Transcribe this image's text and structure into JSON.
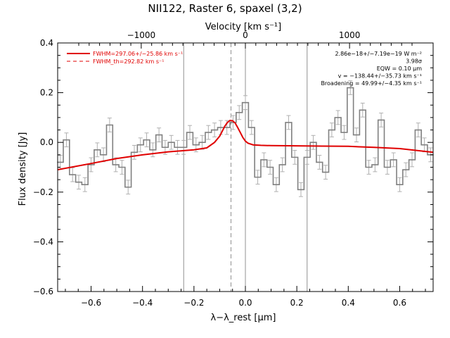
{
  "chart_data": {
    "type": "line",
    "title": "NII122, Raster 6, spaxel (3,2)",
    "xlabel": "λ−λ_rest [μm]",
    "ylabel": "Flux density [Jy]",
    "top_xlabel": "Velocity [km s⁻¹]",
    "xlim": [
      -0.73,
      0.73
    ],
    "ylim": [
      -0.6,
      0.4
    ],
    "x_ticks": [
      "−0.6",
      "−0.4",
      "−0.2",
      "0.0",
      "0.2",
      "0.4",
      "0.6"
    ],
    "x_tick_values": [
      -0.6,
      -0.4,
      -0.2,
      0.0,
      0.2,
      0.4,
      0.6
    ],
    "y_ticks": [
      "−0.6",
      "−0.4",
      "−0.2",
      "0.0",
      "0.2",
      "0.4"
    ],
    "y_tick_values": [
      -0.6,
      -0.4,
      -0.2,
      0.0,
      0.2,
      0.4
    ],
    "top_ticks": [
      "−1000",
      "0",
      "1000"
    ],
    "top_tick_values": [
      -0.405,
      0.0,
      0.405
    ],
    "grid": false,
    "vertical_lines": [
      {
        "x": -0.24,
        "style": "solid"
      },
      {
        "x": 0.0,
        "style": "solid"
      },
      {
        "x": 0.24,
        "style": "solid"
      },
      {
        "x": -0.056,
        "style": "dashed"
      }
    ],
    "legend": {
      "placement": "top-left",
      "entries": [
        {
          "label": "FWHM=297.06+/−25.86 km s⁻¹",
          "style": "solid",
          "color": "#e00000"
        },
        {
          "label": "FWHM_th=292.82 km s⁻¹",
          "style": "dashed",
          "color": "#e00000"
        }
      ]
    },
    "annotations": [
      "2.86e−18+/−7.19e−19 W m⁻²",
      "3.98σ",
      "EQW = 0.10 μm",
      "v = −138.44+/−35.73 km s⁻¹",
      "Broadening = 49.99+/−4.35 km s⁻¹"
    ],
    "series": [
      {
        "type": "step",
        "color": "#808080",
        "x": [
          -0.72,
          -0.696,
          -0.672,
          -0.648,
          -0.624,
          -0.6,
          -0.576,
          -0.552,
          -0.528,
          -0.504,
          -0.48,
          -0.456,
          -0.432,
          -0.408,
          -0.384,
          -0.36,
          -0.336,
          -0.312,
          -0.288,
          -0.264,
          -0.24,
          -0.216,
          -0.192,
          -0.168,
          -0.144,
          -0.12,
          -0.096,
          -0.072,
          -0.048,
          -0.024,
          0.0,
          0.024,
          0.048,
          0.072,
          0.096,
          0.12,
          0.144,
          0.168,
          0.192,
          0.216,
          0.24,
          0.264,
          0.288,
          0.312,
          0.336,
          0.36,
          0.384,
          0.408,
          0.432,
          0.456,
          0.48,
          0.504,
          0.528,
          0.552,
          0.576,
          0.6,
          0.624,
          0.648,
          0.672,
          0.696,
          0.72
        ],
        "y": [
          -0.08,
          0.01,
          -0.13,
          -0.16,
          -0.17,
          -0.09,
          -0.03,
          -0.05,
          0.07,
          -0.09,
          -0.1,
          -0.18,
          -0.04,
          -0.01,
          0.01,
          -0.03,
          0.03,
          -0.02,
          0.0,
          -0.02,
          -0.02,
          0.04,
          -0.01,
          0.0,
          0.04,
          0.05,
          0.06,
          0.06,
          0.08,
          0.12,
          0.16,
          0.06,
          -0.14,
          -0.07,
          -0.1,
          -0.17,
          -0.09,
          0.08,
          -0.06,
          -0.19,
          -0.06,
          0.0,
          -0.08,
          -0.12,
          0.05,
          0.1,
          0.04,
          0.22,
          0.03,
          0.13,
          -0.1,
          -0.09,
          0.09,
          -0.1,
          -0.07,
          -0.17,
          -0.11,
          -0.07,
          0.05,
          -0.01,
          -0.05
        ]
      },
      {
        "type": "line",
        "color": "#e00000",
        "name": "fit",
        "x": [
          -0.73,
          -0.6,
          -0.5,
          -0.4,
          -0.3,
          -0.2,
          -0.15,
          -0.12,
          -0.1,
          -0.09,
          -0.08,
          -0.07,
          -0.06,
          -0.05,
          -0.04,
          -0.03,
          -0.02,
          -0.01,
          0.0,
          0.01,
          0.03,
          0.06,
          0.1,
          0.2,
          0.3,
          0.4,
          0.5,
          0.6,
          0.73
        ],
        "y": [
          -0.11,
          -0.085,
          -0.065,
          -0.05,
          -0.038,
          -0.03,
          -0.022,
          0.0,
          0.025,
          0.045,
          0.065,
          0.08,
          0.088,
          0.087,
          0.078,
          0.06,
          0.04,
          0.02,
          0.005,
          -0.003,
          -0.01,
          -0.012,
          -0.013,
          -0.014,
          -0.015,
          -0.016,
          -0.02,
          -0.025,
          -0.04
        ]
      }
    ]
  }
}
